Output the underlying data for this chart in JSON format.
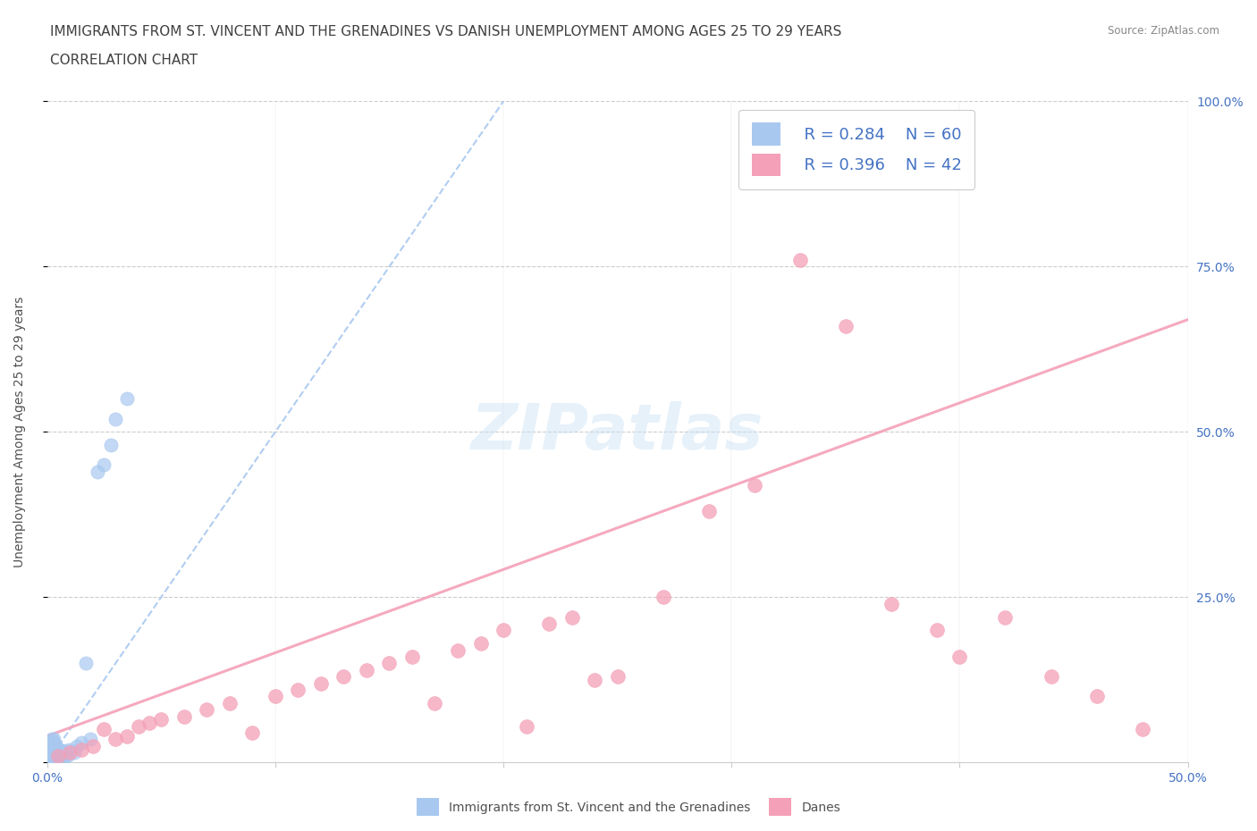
{
  "title_line1": "IMMIGRANTS FROM ST. VINCENT AND THE GRENADINES VS DANISH UNEMPLOYMENT AMONG AGES 25 TO 29 YEARS",
  "title_line2": "CORRELATION CHART",
  "source_text": "Source: ZipAtlas.com",
  "ylabel": "Unemployment Among Ages 25 to 29 years",
  "xlim": [
    0,
    0.5
  ],
  "ylim": [
    0,
    1.0
  ],
  "watermark": "ZIPatlas",
  "legend_r1": "R = 0.284",
  "legend_n1": "N = 60",
  "legend_r2": "R = 0.396",
  "legend_n2": "N = 42",
  "blue_color": "#a8c8f0",
  "pink_color": "#f4a0b8",
  "blue_scatter_x": [
    0.001,
    0.001,
    0.001,
    0.001,
    0.001,
    0.001,
    0.001,
    0.001,
    0.001,
    0.001,
    0.002,
    0.002,
    0.002,
    0.002,
    0.002,
    0.002,
    0.002,
    0.002,
    0.002,
    0.002,
    0.003,
    0.003,
    0.003,
    0.003,
    0.003,
    0.003,
    0.003,
    0.003,
    0.003,
    0.003,
    0.004,
    0.004,
    0.004,
    0.004,
    0.004,
    0.004,
    0.005,
    0.005,
    0.005,
    0.005,
    0.006,
    0.006,
    0.006,
    0.006,
    0.007,
    0.007,
    0.008,
    0.008,
    0.009,
    0.01,
    0.012,
    0.013,
    0.015,
    0.017,
    0.019,
    0.022,
    0.025,
    0.028,
    0.03,
    0.035
  ],
  "blue_scatter_y": [
    0.005,
    0.008,
    0.01,
    0.012,
    0.015,
    0.018,
    0.02,
    0.022,
    0.025,
    0.03,
    0.005,
    0.008,
    0.01,
    0.012,
    0.015,
    0.018,
    0.02,
    0.025,
    0.03,
    0.035,
    0.005,
    0.008,
    0.01,
    0.012,
    0.015,
    0.018,
    0.02,
    0.025,
    0.03,
    0.035,
    0.005,
    0.008,
    0.012,
    0.015,
    0.02,
    0.025,
    0.005,
    0.01,
    0.015,
    0.02,
    0.005,
    0.008,
    0.012,
    0.018,
    0.008,
    0.015,
    0.01,
    0.018,
    0.012,
    0.02,
    0.015,
    0.025,
    0.03,
    0.15,
    0.035,
    0.44,
    0.45,
    0.48,
    0.52,
    0.55
  ],
  "pink_scatter_x": [
    0.005,
    0.01,
    0.015,
    0.02,
    0.025,
    0.03,
    0.035,
    0.04,
    0.045,
    0.05,
    0.06,
    0.07,
    0.08,
    0.09,
    0.1,
    0.11,
    0.12,
    0.13,
    0.14,
    0.15,
    0.16,
    0.17,
    0.18,
    0.19,
    0.2,
    0.21,
    0.22,
    0.23,
    0.24,
    0.25,
    0.27,
    0.29,
    0.31,
    0.33,
    0.35,
    0.37,
    0.39,
    0.4,
    0.42,
    0.44,
    0.46,
    0.48
  ],
  "pink_scatter_y": [
    0.01,
    0.015,
    0.02,
    0.025,
    0.05,
    0.035,
    0.04,
    0.055,
    0.06,
    0.065,
    0.07,
    0.08,
    0.09,
    0.045,
    0.1,
    0.11,
    0.12,
    0.13,
    0.14,
    0.15,
    0.16,
    0.09,
    0.17,
    0.18,
    0.2,
    0.055,
    0.21,
    0.22,
    0.125,
    0.13,
    0.25,
    0.38,
    0.42,
    0.76,
    0.66,
    0.24,
    0.2,
    0.16,
    0.22,
    0.13,
    0.1,
    0.05
  ],
  "blue_trend_x": [
    0.0,
    0.2
  ],
  "blue_trend_y": [
    0.0,
    1.0
  ],
  "pink_trend_x": [
    0.0,
    0.5
  ],
  "pink_trend_y": [
    0.04,
    0.67
  ],
  "title_fontsize": 11,
  "axis_label_fontsize": 10,
  "tick_fontsize": 10,
  "legend_fontsize": 13,
  "watermark_fontsize": 52,
  "background_color": "#ffffff",
  "grid_color": "#cccccc",
  "title_color": "#404040",
  "axis_label_color": "#505050",
  "tick_color": "#4472c4",
  "legend_text_color": "#4472c4"
}
